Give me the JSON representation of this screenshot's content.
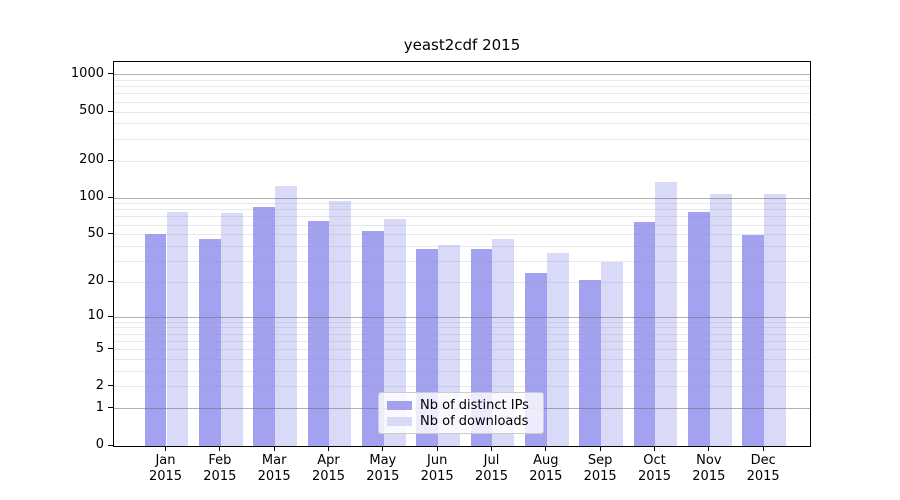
{
  "chart_data": {
    "type": "bar",
    "title": "yeast2cdf 2015",
    "categories": [
      "Jan 2015",
      "Feb 2015",
      "Mar 2015",
      "Apr 2015",
      "May 2015",
      "Jun 2015",
      "Jul 2015",
      "Aug 2015",
      "Sep 2015",
      "Oct 2015",
      "Nov 2015",
      "Dec 2015"
    ],
    "series": [
      {
        "name": "Nb of distinct IPs",
        "color": "#a2a2f0",
        "values": [
          51,
          46,
          84,
          65,
          54,
          38,
          38,
          24,
          21,
          64,
          77,
          50
        ]
      },
      {
        "name": "Nb of downloads",
        "color": "#d9d9f8",
        "values": [
          77,
          75,
          125,
          95,
          67,
          41,
          46,
          35,
          30,
          135,
          108,
          108
        ]
      }
    ],
    "yscale": "log10(1+x)",
    "ylim": [
      0,
      1270
    ],
    "ytick_values": [
      0,
      1,
      2,
      5,
      10,
      20,
      50,
      100,
      200,
      500,
      1000
    ],
    "ytick_labels": [
      "0",
      "1",
      "2",
      "5",
      "10",
      "20",
      "50",
      "100",
      "200",
      "500",
      "1000"
    ],
    "grid": "both",
    "grid_over_bars": true,
    "legend_position": "lower center",
    "colors": {
      "major_grid": "#b0b0b0",
      "minor_grid": "#e6e6e6",
      "spine": "#000000",
      "background": "#ffffff"
    }
  }
}
